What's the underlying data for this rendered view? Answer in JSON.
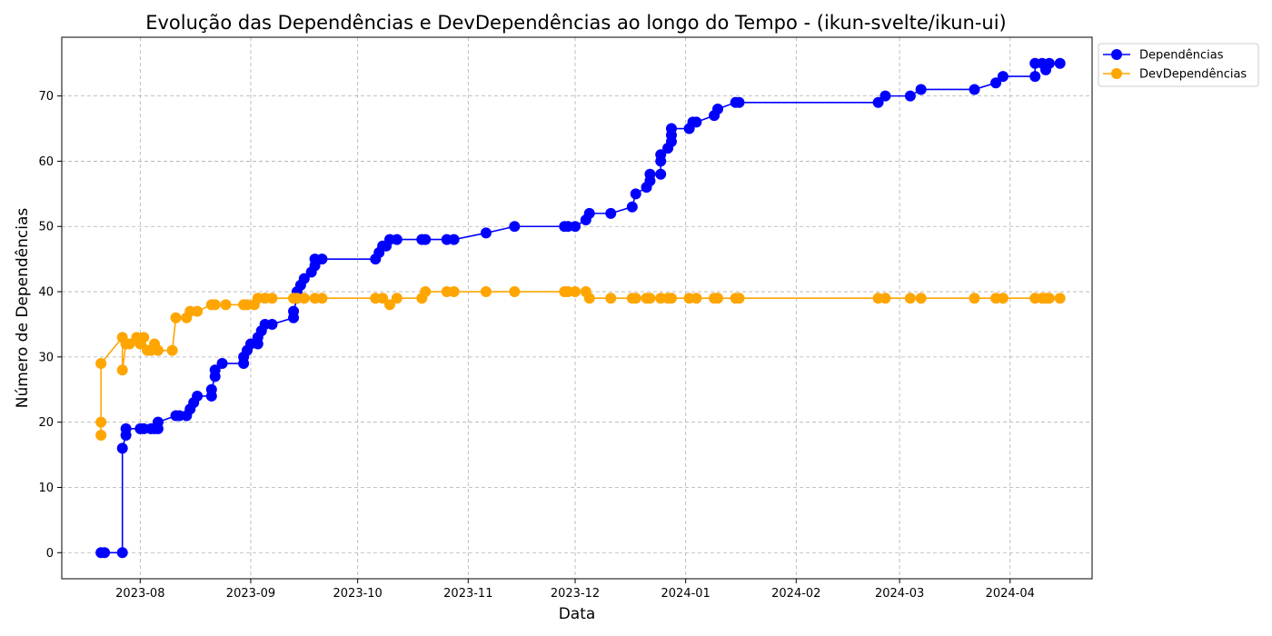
{
  "chart_data": {
    "type": "line",
    "title": "Evolução das Dependências e DevDependências ao longo do Tempo - (ikun-svelte/ikun-ui)",
    "xlabel": "Data",
    "ylabel": "Número de Dependências",
    "xlim": [
      "2023-07-10",
      "2024-04-24"
    ],
    "ylim": [
      -4,
      79
    ],
    "x_ticks": [
      "2023-08",
      "2023-09",
      "2023-10",
      "2023-11",
      "2023-12",
      "2024-01",
      "2024-02",
      "2024-03",
      "2024-04"
    ],
    "y_ticks": [
      0,
      10,
      20,
      30,
      40,
      50,
      60,
      70
    ],
    "grid": true,
    "legend_position": "outside top-right",
    "series": [
      {
        "name": "Dependências",
        "color": "#0000ff",
        "points": [
          [
            "2023-07-21",
            0
          ],
          [
            "2023-07-22",
            0
          ],
          [
            "2023-07-27",
            0
          ],
          [
            "2023-07-27",
            16
          ],
          [
            "2023-07-28",
            18
          ],
          [
            "2023-07-28",
            19
          ],
          [
            "2023-08-01",
            19
          ],
          [
            "2023-08-02",
            19
          ],
          [
            "2023-08-04",
            19
          ],
          [
            "2023-08-05",
            19
          ],
          [
            "2023-08-06",
            19
          ],
          [
            "2023-08-06",
            20
          ],
          [
            "2023-08-11",
            21
          ],
          [
            "2023-08-12",
            21
          ],
          [
            "2023-08-14",
            21
          ],
          [
            "2023-08-15",
            22
          ],
          [
            "2023-08-16",
            23
          ],
          [
            "2023-08-17",
            24
          ],
          [
            "2023-08-21",
            24
          ],
          [
            "2023-08-21",
            25
          ],
          [
            "2023-08-22",
            27
          ],
          [
            "2023-08-22",
            28
          ],
          [
            "2023-08-24",
            29
          ],
          [
            "2023-08-30",
            29
          ],
          [
            "2023-08-30",
            30
          ],
          [
            "2023-08-31",
            31
          ],
          [
            "2023-09-01",
            32
          ],
          [
            "2023-09-03",
            32
          ],
          [
            "2023-09-03",
            33
          ],
          [
            "2023-09-04",
            34
          ],
          [
            "2023-09-05",
            35
          ],
          [
            "2023-09-07",
            35
          ],
          [
            "2023-09-13",
            36
          ],
          [
            "2023-09-13",
            37
          ],
          [
            "2023-09-14",
            39
          ],
          [
            "2023-09-14",
            40
          ],
          [
            "2023-09-15",
            41
          ],
          [
            "2023-09-16",
            42
          ],
          [
            "2023-09-18",
            43
          ],
          [
            "2023-09-19",
            44
          ],
          [
            "2023-09-19",
            45
          ],
          [
            "2023-09-21",
            45
          ],
          [
            "2023-10-06",
            45
          ],
          [
            "2023-10-07",
            46
          ],
          [
            "2023-10-08",
            47
          ],
          [
            "2023-10-09",
            47
          ],
          [
            "2023-10-10",
            48
          ],
          [
            "2023-10-12",
            48
          ],
          [
            "2023-10-19",
            48
          ],
          [
            "2023-10-20",
            48
          ],
          [
            "2023-10-26",
            48
          ],
          [
            "2023-10-28",
            48
          ],
          [
            "2023-11-06",
            49
          ],
          [
            "2023-11-14",
            50
          ],
          [
            "2023-11-28",
            50
          ],
          [
            "2023-11-29",
            50
          ],
          [
            "2023-12-01",
            50
          ],
          [
            "2023-12-04",
            51
          ],
          [
            "2023-12-05",
            52
          ],
          [
            "2023-12-11",
            52
          ],
          [
            "2023-12-17",
            53
          ],
          [
            "2023-12-18",
            55
          ],
          [
            "2023-12-21",
            56
          ],
          [
            "2023-12-22",
            57
          ],
          [
            "2023-12-22",
            58
          ],
          [
            "2023-12-25",
            58
          ],
          [
            "2023-12-25",
            60
          ],
          [
            "2023-12-25",
            61
          ],
          [
            "2023-12-27",
            62
          ],
          [
            "2023-12-28",
            63
          ],
          [
            "2023-12-28",
            64
          ],
          [
            "2023-12-28",
            65
          ],
          [
            "2024-01-02",
            65
          ],
          [
            "2024-01-03",
            66
          ],
          [
            "2024-01-04",
            66
          ],
          [
            "2024-01-09",
            67
          ],
          [
            "2024-01-10",
            68
          ],
          [
            "2024-01-15",
            69
          ],
          [
            "2024-01-16",
            69
          ],
          [
            "2024-02-24",
            69
          ],
          [
            "2024-02-26",
            70
          ],
          [
            "2024-03-04",
            70
          ],
          [
            "2024-03-07",
            71
          ],
          [
            "2024-03-22",
            71
          ],
          [
            "2024-03-28",
            72
          ],
          [
            "2024-03-30",
            73
          ],
          [
            "2024-04-08",
            73
          ],
          [
            "2024-04-08",
            75
          ],
          [
            "2024-04-10",
            75
          ],
          [
            "2024-04-11",
            74
          ],
          [
            "2024-04-12",
            75
          ],
          [
            "2024-04-15",
            75
          ]
        ]
      },
      {
        "name": "DevDependências",
        "color": "#ffa500",
        "points": [
          [
            "2023-07-21",
            18
          ],
          [
            "2023-07-21",
            20
          ],
          [
            "2023-07-21",
            29
          ],
          [
            "2023-07-27",
            33
          ],
          [
            "2023-07-27",
            28
          ],
          [
            "2023-07-28",
            32
          ],
          [
            "2023-07-29",
            32
          ],
          [
            "2023-07-31",
            33
          ],
          [
            "2023-08-01",
            32
          ],
          [
            "2023-08-02",
            33
          ],
          [
            "2023-08-03",
            31
          ],
          [
            "2023-08-04",
            31
          ],
          [
            "2023-08-05",
            32
          ],
          [
            "2023-08-06",
            31
          ],
          [
            "2023-08-10",
            31
          ],
          [
            "2023-08-11",
            36
          ],
          [
            "2023-08-14",
            36
          ],
          [
            "2023-08-15",
            37
          ],
          [
            "2023-08-17",
            37
          ],
          [
            "2023-08-21",
            38
          ],
          [
            "2023-08-22",
            38
          ],
          [
            "2023-08-25",
            38
          ],
          [
            "2023-08-30",
            38
          ],
          [
            "2023-08-31",
            38
          ],
          [
            "2023-09-02",
            38
          ],
          [
            "2023-09-03",
            39
          ],
          [
            "2023-09-05",
            39
          ],
          [
            "2023-09-07",
            39
          ],
          [
            "2023-09-13",
            39
          ],
          [
            "2023-09-14",
            39
          ],
          [
            "2023-09-16",
            39
          ],
          [
            "2023-09-19",
            39
          ],
          [
            "2023-09-21",
            39
          ],
          [
            "2023-10-06",
            39
          ],
          [
            "2023-10-08",
            39
          ],
          [
            "2023-10-10",
            38
          ],
          [
            "2023-10-12",
            39
          ],
          [
            "2023-10-19",
            39
          ],
          [
            "2023-10-20",
            40
          ],
          [
            "2023-10-26",
            40
          ],
          [
            "2023-10-28",
            40
          ],
          [
            "2023-11-06",
            40
          ],
          [
            "2023-11-14",
            40
          ],
          [
            "2023-11-28",
            40
          ],
          [
            "2023-11-29",
            40
          ],
          [
            "2023-12-01",
            40
          ],
          [
            "2023-12-04",
            40
          ],
          [
            "2023-12-05",
            39
          ],
          [
            "2023-12-11",
            39
          ],
          [
            "2023-12-17",
            39
          ],
          [
            "2023-12-18",
            39
          ],
          [
            "2023-12-21",
            39
          ],
          [
            "2023-12-22",
            39
          ],
          [
            "2023-12-25",
            39
          ],
          [
            "2023-12-27",
            39
          ],
          [
            "2023-12-28",
            39
          ],
          [
            "2024-01-02",
            39
          ],
          [
            "2024-01-04",
            39
          ],
          [
            "2024-01-09",
            39
          ],
          [
            "2024-01-10",
            39
          ],
          [
            "2024-01-15",
            39
          ],
          [
            "2024-01-16",
            39
          ],
          [
            "2024-02-24",
            39
          ],
          [
            "2024-02-26",
            39
          ],
          [
            "2024-03-04",
            39
          ],
          [
            "2024-03-07",
            39
          ],
          [
            "2024-03-22",
            39
          ],
          [
            "2024-03-28",
            39
          ],
          [
            "2024-03-30",
            39
          ],
          [
            "2024-04-08",
            39
          ],
          [
            "2024-04-10",
            39
          ],
          [
            "2024-04-11",
            39
          ],
          [
            "2024-04-12",
            39
          ],
          [
            "2024-04-15",
            39
          ]
        ]
      }
    ]
  }
}
